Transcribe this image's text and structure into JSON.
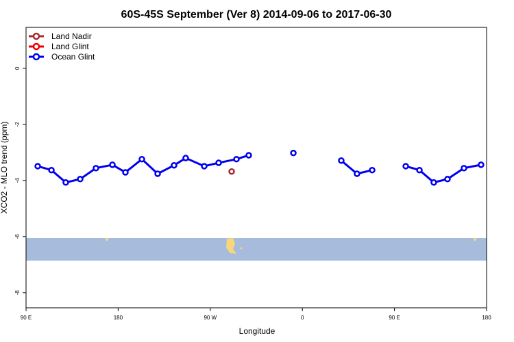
{
  "chart_data": {
    "type": "line",
    "title": "60S-45S September (Ver 8)   2014-09-06 to 2017-06-30",
    "x_label": "Longitude",
    "y_label": "XCO2 - MLO trend (ppm)",
    "xlim": [
      90,
      540
    ],
    "xticks": [
      {
        "value": 90,
        "label": "90 E"
      },
      {
        "value": 180,
        "label": "180"
      },
      {
        "value": 270,
        "label": "90 W"
      },
      {
        "value": 360,
        "label": "0"
      },
      {
        "value": 450,
        "label": "90 E"
      },
      {
        "value": 540,
        "label": "180"
      }
    ],
    "ylim": [
      -8.54,
      1.46
    ],
    "yticks": [
      0,
      -2,
      -4,
      -6,
      -8
    ],
    "legend": "top-left",
    "series": [
      {
        "name": "Land Nadir",
        "color": "#a52a2a",
        "x": [
          290.9
        ],
        "values": [
          -3.68
        ]
      },
      {
        "name": "Land Glint",
        "color": "#ee0000",
        "x": [],
        "values": []
      },
      {
        "name": "Ocean Glint",
        "color": "#0000ee",
        "x": [
          101.4,
          114.8,
          128.8,
          142.9,
          158.3,
          174.4,
          187.1,
          203.2,
          218.6,
          234.6,
          246,
          264.1,
          278.2,
          295.6,
          307.6,
          null,
          351.2,
          null,
          398,
          413.4,
          428.2,
          null,
          461,
          474.4,
          488.4,
          501.8,
          517.9,
          534.6
        ],
        "values": [
          -3.49,
          -3.63,
          -4.07,
          -3.95,
          -3.56,
          -3.44,
          -3.71,
          -3.24,
          -3.76,
          -3.46,
          -3.2,
          -3.49,
          -3.37,
          -3.24,
          -3.1,
          null,
          -3.02,
          null,
          -3.29,
          -3.76,
          -3.63,
          null,
          -3.49,
          -3.63,
          -4.07,
          -3.95,
          -3.56,
          -3.44
        ]
      }
    ]
  }
}
